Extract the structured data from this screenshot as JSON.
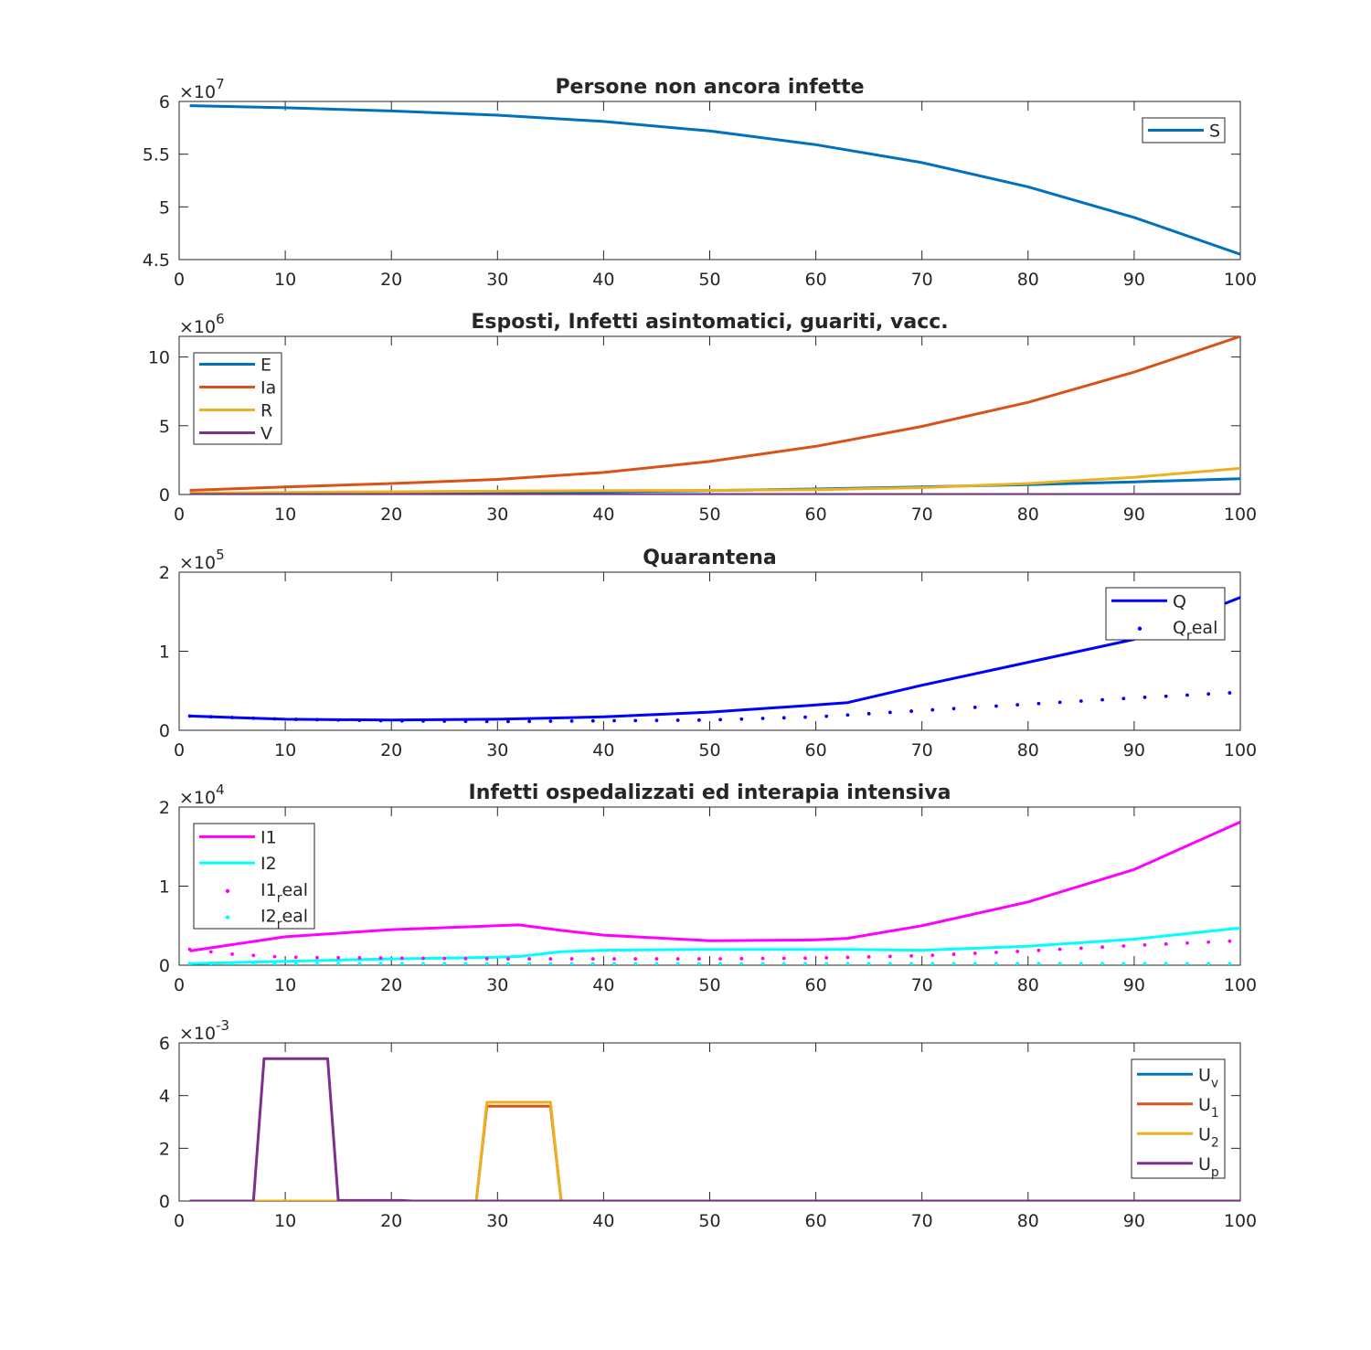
{
  "chart_data": [
    {
      "type": "line",
      "title": "Persone non ancora infette",
      "exponent": "7",
      "xlim": [
        0,
        100
      ],
      "ylim": [
        4.5,
        6
      ],
      "xticks": [
        0,
        10,
        20,
        30,
        40,
        50,
        60,
        70,
        80,
        90,
        100
      ],
      "yticks": [
        4.5,
        5,
        5.5,
        6
      ],
      "ytick_labels": [
        "4.5",
        "5",
        "5.5",
        "6"
      ],
      "legend_position": "top-right",
      "series": [
        {
          "name": "S",
          "color": "#0072BD",
          "style": "line",
          "x": [
            1,
            10,
            20,
            30,
            40,
            50,
            60,
            70,
            80,
            90,
            100
          ],
          "y": [
            5.96,
            5.94,
            5.91,
            5.87,
            5.81,
            5.72,
            5.59,
            5.42,
            5.19,
            4.9,
            4.55
          ]
        }
      ]
    },
    {
      "type": "line",
      "title": "Esposti, Infetti asintomatici, guariti, vacc.",
      "exponent": "6",
      "xlim": [
        0,
        100
      ],
      "ylim": [
        0,
        11.5
      ],
      "xticks": [
        0,
        10,
        20,
        30,
        40,
        50,
        60,
        70,
        80,
        90,
        100
      ],
      "yticks": [
        0,
        5,
        10
      ],
      "ytick_labels": [
        "0",
        "5",
        "10"
      ],
      "legend_position": "top-left",
      "series": [
        {
          "name": "E",
          "color": "#0072BD",
          "style": "line",
          "x": [
            1,
            10,
            20,
            30,
            40,
            50,
            60,
            70,
            80,
            90,
            100
          ],
          "y": [
            0.05,
            0.07,
            0.1,
            0.15,
            0.2,
            0.28,
            0.4,
            0.55,
            0.72,
            0.92,
            1.15
          ]
        },
        {
          "name": "Ia",
          "color": "#D95319",
          "style": "line",
          "x": [
            1,
            10,
            20,
            30,
            40,
            50,
            60,
            70,
            80,
            90,
            100
          ],
          "y": [
            0.3,
            0.55,
            0.8,
            1.1,
            1.6,
            2.4,
            3.5,
            4.95,
            6.7,
            8.9,
            11.5
          ]
        },
        {
          "name": "R",
          "color": "#EDB120",
          "style": "line",
          "x": [
            1,
            10,
            20,
            30,
            40,
            50,
            60,
            70,
            80,
            90,
            100
          ],
          "y": [
            0.1,
            0.15,
            0.2,
            0.25,
            0.28,
            0.3,
            0.35,
            0.5,
            0.8,
            1.25,
            1.9
          ]
        },
        {
          "name": "V",
          "color": "#7E2F8E",
          "style": "line",
          "x": [
            1,
            100
          ],
          "y": [
            0,
            0
          ]
        }
      ]
    },
    {
      "type": "line",
      "title": "Quarantena",
      "exponent": "5",
      "xlim": [
        0,
        100
      ],
      "ylim": [
        0,
        2
      ],
      "xticks": [
        0,
        10,
        20,
        30,
        40,
        50,
        60,
        70,
        80,
        90,
        100
      ],
      "yticks": [
        0,
        1,
        2
      ],
      "ytick_labels": [
        "0",
        "1",
        "2"
      ],
      "legend_position": "top-right",
      "series": [
        {
          "name": "Q",
          "color": "#0000FF",
          "style": "line",
          "x": [
            1,
            10,
            20,
            30,
            40,
            50,
            60,
            63,
            70,
            80,
            90,
            100
          ],
          "y": [
            0.18,
            0.14,
            0.13,
            0.14,
            0.17,
            0.23,
            0.32,
            0.35,
            0.57,
            0.86,
            1.15,
            1.68
          ]
        },
        {
          "name": "Q",
          "name_sub": "r",
          "name_tail": "eal",
          "color": "#0000FF",
          "style": "dots",
          "x": [
            1,
            10,
            20,
            30,
            40,
            50,
            60,
            70,
            80,
            90,
            100
          ],
          "y": [
            0.18,
            0.14,
            0.12,
            0.11,
            0.12,
            0.13,
            0.17,
            0.25,
            0.33,
            0.41,
            0.48
          ]
        }
      ]
    },
    {
      "type": "line",
      "title": "Infetti ospedalizzati ed interapia intensiva",
      "exponent": "4",
      "xlim": [
        0,
        100
      ],
      "ylim": [
        0,
        2
      ],
      "xticks": [
        0,
        10,
        20,
        30,
        40,
        50,
        60,
        70,
        80,
        90,
        100
      ],
      "yticks": [
        0,
        1,
        2
      ],
      "ytick_labels": [
        "0",
        "1",
        "2"
      ],
      "legend_position": "top-left",
      "series": [
        {
          "name": "I1",
          "color": "#FF00FF",
          "style": "line",
          "x": [
            1,
            10,
            20,
            30,
            32,
            36,
            40,
            50,
            60,
            63,
            70,
            80,
            90,
            100
          ],
          "y": [
            0.18,
            0.36,
            0.45,
            0.5,
            0.51,
            0.44,
            0.38,
            0.31,
            0.32,
            0.34,
            0.5,
            0.8,
            1.21,
            1.81
          ]
        },
        {
          "name": "I2",
          "color": "#00FFFF",
          "style": "line",
          "x": [
            1,
            10,
            20,
            30,
            32,
            36,
            40,
            50,
            60,
            63,
            70,
            80,
            90,
            100
          ],
          "y": [
            0.02,
            0.05,
            0.08,
            0.1,
            0.11,
            0.17,
            0.19,
            0.2,
            0.2,
            0.2,
            0.19,
            0.24,
            0.33,
            0.47
          ]
        },
        {
          "name": "I1",
          "name_sub": "r",
          "name_tail": "eal",
          "color": "#FF00FF",
          "style": "dots",
          "x": [
            1,
            5,
            10,
            20,
            30,
            40,
            50,
            60,
            70,
            80,
            90,
            100
          ],
          "y": [
            0.2,
            0.14,
            0.1,
            0.09,
            0.08,
            0.08,
            0.08,
            0.09,
            0.12,
            0.18,
            0.25,
            0.31
          ]
        },
        {
          "name": "I2",
          "name_sub": "r",
          "name_tail": "eal",
          "color": "#00FFFF",
          "style": "dots",
          "x": [
            1,
            10,
            20,
            30,
            40,
            50,
            60,
            70,
            80,
            90,
            100
          ],
          "y": [
            0.02,
            0.02,
            0.02,
            0.02,
            0.02,
            0.02,
            0.02,
            0.02,
            0.02,
            0.02,
            0.02
          ]
        }
      ]
    },
    {
      "type": "line",
      "title": "",
      "exponent": "-3",
      "xlim": [
        0,
        100
      ],
      "ylim": [
        0,
        6
      ],
      "xticks": [
        0,
        10,
        20,
        30,
        40,
        50,
        60,
        70,
        80,
        90,
        100
      ],
      "yticks": [
        0,
        2,
        4,
        6
      ],
      "ytick_labels": [
        "0",
        "2",
        "4",
        "6"
      ],
      "legend_position": "top-right",
      "series": [
        {
          "name": "U",
          "name_sub": "v",
          "color": "#0072BD",
          "style": "line",
          "x": [
            1,
            100
          ],
          "y": [
            0,
            0
          ]
        },
        {
          "name": "U",
          "name_sub": "1",
          "color": "#D95319",
          "style": "line",
          "x": [
            1,
            28,
            29,
            35,
            36,
            100
          ],
          "y": [
            0,
            0,
            3.6,
            3.6,
            0,
            0
          ]
        },
        {
          "name": "U",
          "name_sub": "2",
          "color": "#EDB120",
          "style": "line",
          "x": [
            1,
            28,
            29,
            35,
            36,
            100
          ],
          "y": [
            0,
            0,
            3.75,
            3.75,
            0,
            0
          ]
        },
        {
          "name": "U",
          "name_sub": "p",
          "color": "#7E2F8E",
          "style": "line",
          "x": [
            1,
            7,
            8,
            14,
            15,
            21,
            22,
            100
          ],
          "y": [
            0,
            0,
            5.4,
            5.4,
            0.02,
            0.02,
            0,
            0
          ]
        }
      ]
    }
  ]
}
